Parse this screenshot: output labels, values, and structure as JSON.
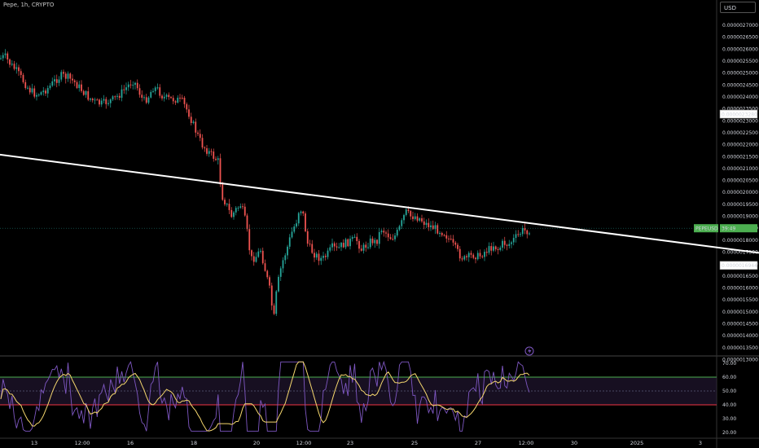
{
  "title": "Pepe, 1h, CRYPTO",
  "currency_button": "USD",
  "colors": {
    "up": "#26a69a",
    "down": "#ef5350",
    "trend": "#ffffff",
    "rsi_line": "#7e57c2",
    "rsi_ma": "#f5d76e",
    "ob_line": "#4caf50",
    "os_line": "#f23645",
    "symbol_tag": "#4caf50"
  },
  "icon": "lightning-icon",
  "price_labels": {
    "upper_marker": "0.0000023280",
    "current_symbol": "PEPEUSD",
    "current_extra": "39:49",
    "lower_marker": "0.0000016944"
  },
  "chart_data": [
    {
      "type": "candlestick",
      "title": "",
      "series_name": "PEPEUSD",
      "y_ticks": [
        "0.0000027000",
        "0.0000026500",
        "0.0000026000",
        "0.0000025500",
        "0.0000025000",
        "0.0000024500",
        "0.0000024000",
        "0.0000023500",
        "0.0000023000",
        "0.0000022500",
        "0.0000022000",
        "0.0000021500",
        "0.0000021000",
        "0.0000020500",
        "0.0000020000",
        "0.0000019500",
        "0.0000019000",
        "0.0000018500",
        "0.0000018000",
        "0.0000017500",
        "0.0000017000",
        "0.0000016500",
        "0.0000016000",
        "0.0000015500",
        "0.0000015000",
        "0.0000014500",
        "0.0000014000",
        "0.0000013500",
        "0.0000013000"
      ],
      "ylim": [
        1.3e-06,
        2.7e-06
      ],
      "x_ticks": [
        "13",
        "12:00",
        "16",
        "18",
        "20",
        "12:00",
        "23",
        "25",
        "27",
        "12:00",
        "30",
        "2025",
        "3"
      ],
      "price_path": [
        [
          0,
          2.56e-06
        ],
        [
          6,
          2.57e-06
        ],
        [
          12,
          2.54e-06
        ],
        [
          20,
          2.51e-06
        ],
        [
          28,
          2.47e-06
        ],
        [
          36,
          2.43e-06
        ],
        [
          44,
          2.41e-06
        ],
        [
          52,
          2.42e-06
        ],
        [
          60,
          2.44e-06
        ],
        [
          68,
          2.47e-06
        ],
        [
          76,
          2.49e-06
        ],
        [
          84,
          2.48e-06
        ],
        [
          92,
          2.46e-06
        ],
        [
          100,
          2.43e-06
        ],
        [
          108,
          2.4e-06
        ],
        [
          116,
          2.38e-06
        ],
        [
          124,
          2.37e-06
        ],
        [
          132,
          2.38e-06
        ],
        [
          140,
          2.39e-06
        ],
        [
          150,
          2.42e-06
        ],
        [
          158,
          2.45e-06
        ],
        [
          164,
          2.47e-06
        ],
        [
          170,
          2.43e-06
        ],
        [
          176,
          2.38e-06
        ],
        [
          182,
          2.4e-06
        ],
        [
          188,
          2.44e-06
        ],
        [
          194,
          2.43e-06
        ],
        [
          200,
          2.4e-06
        ],
        [
          208,
          2.39e-06
        ],
        [
          216,
          2.39e-06
        ],
        [
          224,
          2.38e-06
        ],
        [
          232,
          2.33e-06
        ],
        [
          240,
          2.26e-06
        ],
        [
          248,
          2.2e-06
        ],
        [
          256,
          2.17e-06
        ],
        [
          262,
          2.15e-06
        ],
        [
          268,
          2.13e-06
        ],
        [
          272,
          1.99e-06
        ],
        [
          278,
          1.95e-06
        ],
        [
          284,
          1.9e-06
        ],
        [
          290,
          1.93e-06
        ],
        [
          296,
          1.95e-06
        ],
        [
          302,
          1.87e-06
        ],
        [
          308,
          1.72e-06
        ],
        [
          314,
          1.73e-06
        ],
        [
          320,
          1.76e-06
        ],
        [
          326,
          1.67e-06
        ],
        [
          332,
          1.58e-06
        ],
        [
          336,
          1.46e-06
        ],
        [
          340,
          1.6e-06
        ],
        [
          346,
          1.7e-06
        ],
        [
          352,
          1.76e-06
        ],
        [
          358,
          1.83e-06
        ],
        [
          364,
          1.88e-06
        ],
        [
          368,
          1.94e-06
        ],
        [
          372,
          1.91e-06
        ],
        [
          378,
          1.78e-06
        ],
        [
          384,
          1.75e-06
        ],
        [
          390,
          1.73e-06
        ],
        [
          396,
          1.72e-06
        ],
        [
          402,
          1.74e-06
        ],
        [
          408,
          1.77e-06
        ],
        [
          414,
          1.76e-06
        ],
        [
          420,
          1.78e-06
        ],
        [
          426,
          1.79e-06
        ],
        [
          432,
          1.8e-06
        ],
        [
          438,
          1.8e-06
        ],
        [
          444,
          1.76e-06
        ],
        [
          450,
          1.78e-06
        ],
        [
          456,
          1.8e-06
        ],
        [
          462,
          1.79e-06
        ],
        [
          468,
          1.85e-06
        ],
        [
          474,
          1.83e-06
        ],
        [
          480,
          1.81e-06
        ],
        [
          486,
          1.82e-06
        ],
        [
          492,
          1.86e-06
        ],
        [
          498,
          1.92e-06
        ],
        [
          504,
          1.9e-06
        ],
        [
          510,
          1.9e-06
        ],
        [
          516,
          1.89e-06
        ],
        [
          522,
          1.87e-06
        ],
        [
          528,
          1.86e-06
        ],
        [
          534,
          1.85e-06
        ],
        [
          540,
          1.84e-06
        ],
        [
          546,
          1.83e-06
        ],
        [
          552,
          1.8e-06
        ],
        [
          558,
          1.77e-06
        ],
        [
          564,
          1.74e-06
        ],
        [
          570,
          1.72e-06
        ],
        [
          576,
          1.73e-06
        ],
        [
          582,
          1.74e-06
        ],
        [
          588,
          1.73e-06
        ],
        [
          594,
          1.75e-06
        ],
        [
          600,
          1.76e-06
        ],
        [
          606,
          1.78e-06
        ],
        [
          612,
          1.76e-06
        ],
        [
          618,
          1.79e-06
        ],
        [
          624,
          1.78e-06
        ],
        [
          630,
          1.8e-06
        ],
        [
          636,
          1.82e-06
        ],
        [
          642,
          1.84e-06
        ],
        [
          648,
          1.84e-06
        ],
        [
          652,
          1.85e-06
        ]
      ],
      "trendline": [
        [
          0,
          2.158e-06
        ],
        [
          932,
          1.747e-06
        ]
      ],
      "current_price": 1.85e-06
    },
    {
      "type": "line",
      "title": "",
      "y_ticks": [
        "70.00",
        "60.00",
        "50.00",
        "40.00",
        "30.00",
        "20.00"
      ],
      "ylim": [
        18,
        74
      ],
      "overbought": 60,
      "midline": 50,
      "oversold": 40
    }
  ]
}
